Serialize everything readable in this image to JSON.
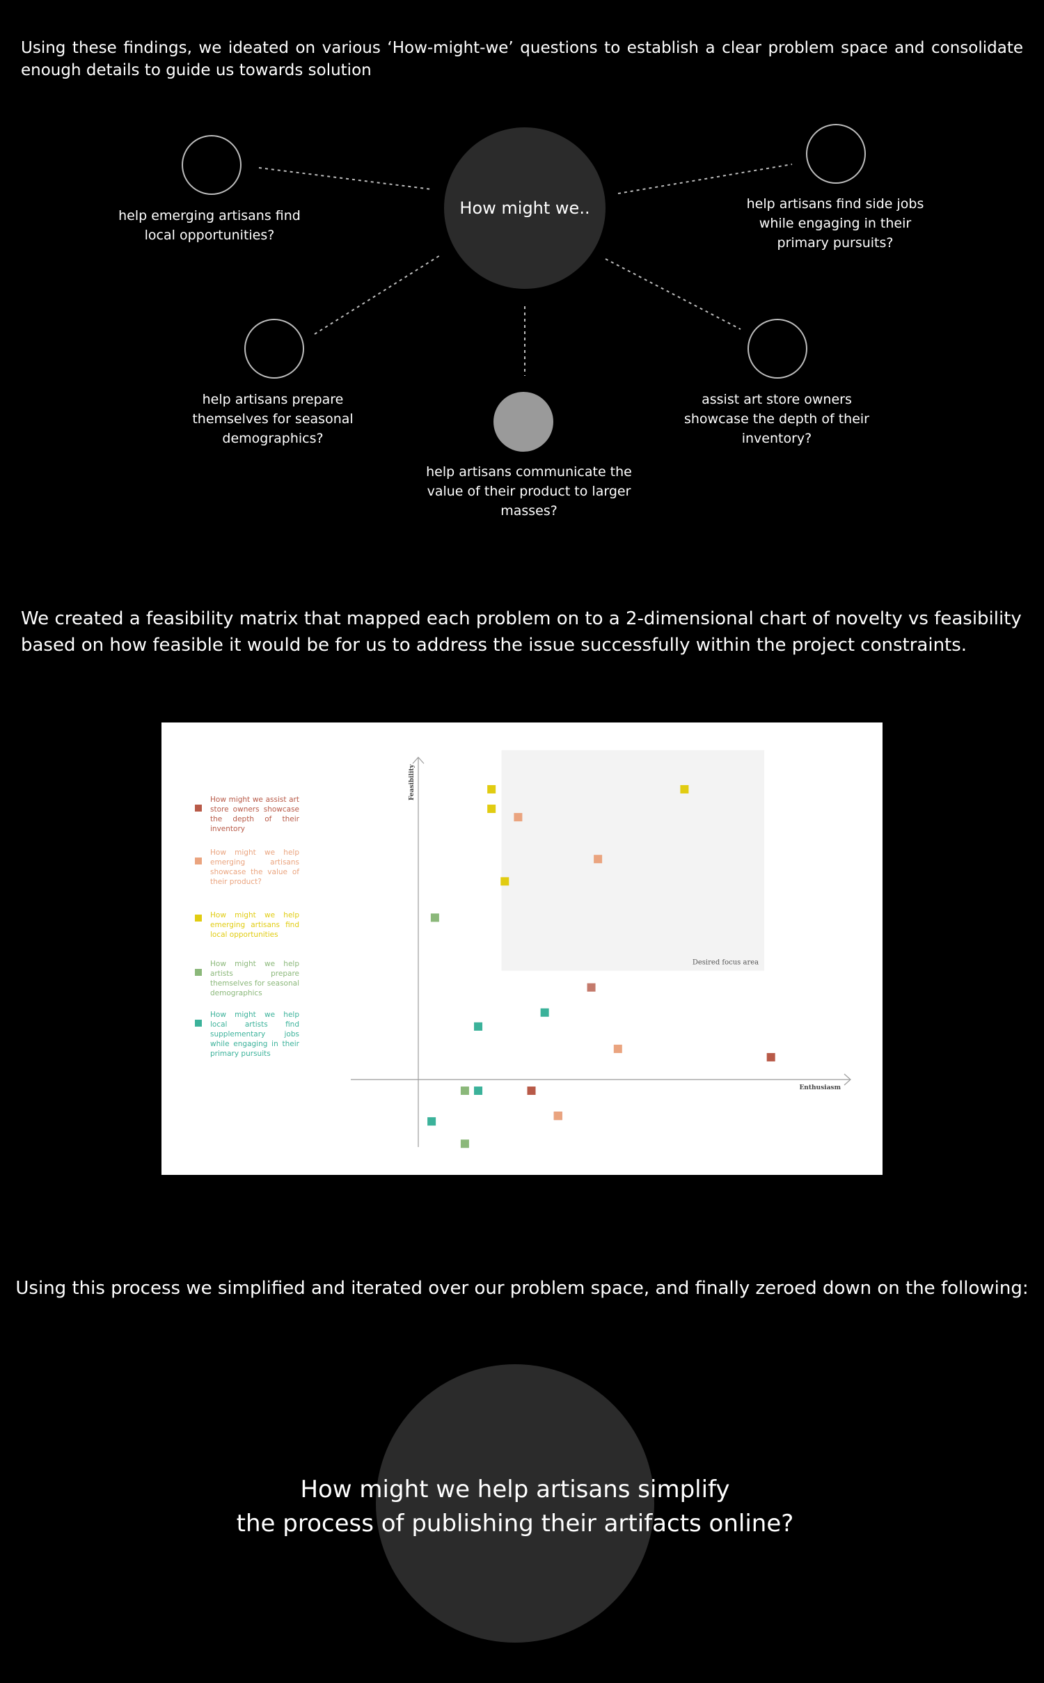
{
  "intro": "Using these findings, we ideated on various ‘How-might-we’ questions to establish a clear problem space and consolidate enough details to guide us towards solution",
  "hmw": {
    "center": "How might we..",
    "nodes": [
      {
        "label": "help emerging artisans find local opportunities?"
      },
      {
        "label": "help artisans find side jobs while engaging in their primary pursuits?"
      },
      {
        "label": "help artisans prepare themselves for seasonal demographics?"
      },
      {
        "label": "help artisans communicate the value of their product to larger masses?"
      },
      {
        "label": "assist art store owners showcase the depth of their inventory?"
      }
    ]
  },
  "matrix_intro": "We created a feasibility matrix that mapped each problem on to a 2-dimensional chart of novelty vs feasibility based on how feasible it would be for us to address the issue successfully within the project constraints.",
  "chart_data": {
    "type": "scatter",
    "xlabel": "Enthusiasm",
    "ylabel": "Feasibility",
    "focus_area_label": "Desired focus area",
    "grid": false,
    "legend_position": "left",
    "series": [
      {
        "name": "How might we assist art store owners showcase the depth of their inventory",
        "color": "#b85a48",
        "points": [
          [
            2.6,
            3.3
          ],
          [
            5.3,
            0.8
          ],
          [
            1.7,
            -0.4
          ],
          [
            2.1,
            -1.3
          ]
        ]
      },
      {
        "name": "How might we help emerging artisans showcase the value of their product?",
        "color": "#eaa47f",
        "points": [
          [
            1.5,
            9.4
          ],
          [
            2.7,
            7.9
          ],
          [
            3.0,
            1.1
          ],
          [
            2.1,
            -1.3
          ]
        ]
      },
      {
        "name": "How might we help emerging artisans find local opportunities",
        "color": "#e1cc11",
        "points": [
          [
            1.1,
            10.4
          ],
          [
            1.1,
            9.7
          ],
          [
            1.3,
            7.1
          ],
          [
            4.0,
            10.4
          ]
        ]
      },
      {
        "name": "How might we help artists prepare themselves for seasonal demographics",
        "color": "#8bb87a",
        "points": [
          [
            0.25,
            5.8
          ],
          [
            0.7,
            -0.4
          ],
          [
            0.7,
            -2.3
          ]
        ]
      },
      {
        "name": "How might we help local artists find supplementary jobs while engaging in their primary pursuits",
        "color": "#3bb29a",
        "points": [
          [
            0.9,
            1.9
          ],
          [
            0.9,
            -0.4
          ],
          [
            1.9,
            2.4
          ],
          [
            0.2,
            -1.5
          ]
        ]
      }
    ],
    "series_colors_override": [
      {
        "series": 0,
        "point": 0,
        "color": "#c47a6c"
      }
    ],
    "xlim": [
      -0.8,
      5.2
    ],
    "ylim": [
      -2.8,
      12.5
    ],
    "focus_area": {
      "x": [
        1.25,
        5.2
      ],
      "y": [
        3.9,
        11.8
      ]
    }
  },
  "process_text": "Using this process we simplified and iterated over our problem space, and finally zeroed down on the following:",
  "final_question": {
    "line1": "How might we help artisans simplify",
    "line2": "the process of publishing their artifacts online?"
  }
}
